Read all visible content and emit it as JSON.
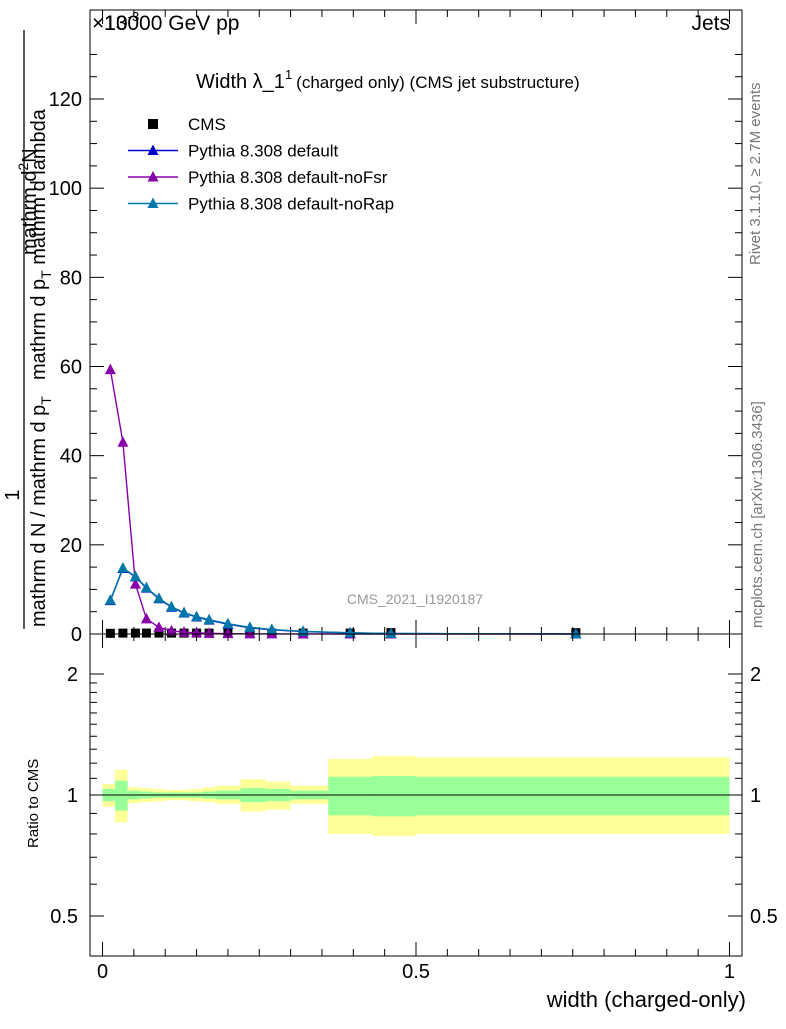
{
  "header": {
    "energy_label": "13000 GeV pp",
    "exponent_label": "×10",
    "exponent_power": "-3",
    "process_label": "Jets"
  },
  "side_labels": {
    "rivet": "Rivet 3.1.10, ≥ 2.7M events",
    "mcplots": "mcplots.cern.ch [arXiv:1306.3436]"
  },
  "chart_data": [
    {
      "type": "line",
      "title_main": "Width λ_1",
      "title_sup": "1",
      "title_rest": "(charged only) (CMS jet substructure)",
      "ylabel_num_a": "1",
      "ylabel_den_a": "mathrm d N / mathrm d p",
      "ylabel_den_a_sub": "T",
      "ylabel_num_b": "mathrm d",
      "ylabel_num_b_sup": "2",
      "ylabel_num_b_end": "N",
      "ylabel_den_b": "mathrm d p",
      "ylabel_den_b_sub": "T",
      "ylabel_den_b_end": " mathrm d lambda",
      "watermark": "CMS_2021_I1920187",
      "xlim": [
        -0.02,
        1.02
      ],
      "ylim": [
        0,
        135
      ],
      "y_ticks": [
        0,
        20,
        40,
        60,
        80,
        100,
        120
      ],
      "legend_position": "top-left",
      "series": [
        {
          "name": "CMS",
          "marker": "square",
          "color": "#000000",
          "x": [
            0.0125,
            0.0325,
            0.0525,
            0.07,
            0.09,
            0.11,
            0.13,
            0.15,
            0.17,
            0.2,
            0.235,
            0.27,
            0.32,
            0.395,
            0.46,
            0.755
          ],
          "y": [
            0.15,
            0.2,
            0.2,
            0.2,
            0.2,
            0.2,
            0.2,
            0.2,
            0.2,
            0.2,
            0.2,
            0.2,
            0.2,
            0.2,
            0.3,
            0.3
          ]
        },
        {
          "name": "Pythia 8.308 default",
          "marker": "triangle",
          "color": "#0000cc",
          "x": [
            0.0125,
            0.0325,
            0.0525,
            0.07,
            0.09,
            0.11,
            0.13,
            0.15,
            0.17,
            0.2,
            0.235,
            0.27,
            0.32,
            0.395,
            0.46,
            0.755
          ],
          "y": [
            7.5,
            14.7,
            12.8,
            10.3,
            7.9,
            6.0,
            4.7,
            3.8,
            3.1,
            2.2,
            1.4,
            0.95,
            0.55,
            0.25,
            0.1,
            0.02
          ]
        },
        {
          "name": "Pythia 8.308 default-noFsr",
          "marker": "triangle",
          "color": "#8800aa",
          "x": [
            0.0125,
            0.0325,
            0.0525,
            0.07,
            0.09,
            0.11,
            0.13,
            0.15,
            0.17,
            0.2,
            0.235,
            0.27,
            0.32,
            0.395,
            0.46,
            0.755
          ],
          "y": [
            59.3,
            43.0,
            11.2,
            3.4,
            1.5,
            0.7,
            0.4,
            0.25,
            0.15,
            0.08,
            0.04,
            0.02,
            0.01,
            0.0,
            0.0,
            0.0
          ]
        },
        {
          "name": "Pythia 8.308 default-noRap",
          "marker": "triangle",
          "color": "#0077aa",
          "x": [
            0.0125,
            0.0325,
            0.0525,
            0.07,
            0.09,
            0.11,
            0.13,
            0.15,
            0.17,
            0.2,
            0.235,
            0.27,
            0.32,
            0.395,
            0.46,
            0.755
          ],
          "y": [
            7.6,
            14.8,
            12.9,
            10.4,
            8.0,
            6.1,
            4.8,
            3.9,
            3.2,
            2.3,
            1.5,
            1.0,
            0.6,
            0.26,
            0.11,
            0.02
          ]
        }
      ]
    },
    {
      "type": "area",
      "ylabel": "Ratio to CMS",
      "xlabel": "width (charged-only)",
      "scale": "log",
      "ylim": [
        0.45,
        2.3
      ],
      "y_ticks": [
        0.5,
        1,
        2
      ],
      "x_ticks": [
        0,
        0.5,
        1
      ],
      "bins": [
        {
          "x0": 0.0,
          "x1": 0.02,
          "inner": [
            0.965,
            1.035
          ],
          "outer": [
            0.935,
            1.065
          ]
        },
        {
          "x0": 0.02,
          "x1": 0.04,
          "inner": [
            0.915,
            1.085
          ],
          "outer": [
            0.855,
            1.155
          ]
        },
        {
          "x0": 0.04,
          "x1": 0.06,
          "inner": [
            0.975,
            1.025
          ],
          "outer": [
            0.955,
            1.045
          ]
        },
        {
          "x0": 0.06,
          "x1": 0.08,
          "inner": [
            0.98,
            1.02
          ],
          "outer": [
            0.96,
            1.04
          ]
        },
        {
          "x0": 0.08,
          "x1": 0.1,
          "inner": [
            0.985,
            1.015
          ],
          "outer": [
            0.965,
            1.035
          ]
        },
        {
          "x0": 0.1,
          "x1": 0.12,
          "inner": [
            0.985,
            1.015
          ],
          "outer": [
            0.97,
            1.03
          ]
        },
        {
          "x0": 0.12,
          "x1": 0.14,
          "inner": [
            0.985,
            1.015
          ],
          "outer": [
            0.97,
            1.03
          ]
        },
        {
          "x0": 0.14,
          "x1": 0.16,
          "inner": [
            0.985,
            1.015
          ],
          "outer": [
            0.965,
            1.035
          ]
        },
        {
          "x0": 0.16,
          "x1": 0.18,
          "inner": [
            0.98,
            1.02
          ],
          "outer": [
            0.96,
            1.045
          ]
        },
        {
          "x0": 0.18,
          "x1": 0.22,
          "inner": [
            0.975,
            1.025
          ],
          "outer": [
            0.95,
            1.055
          ]
        },
        {
          "x0": 0.22,
          "x1": 0.26,
          "inner": [
            0.96,
            1.04
          ],
          "outer": [
            0.91,
            1.095
          ]
        },
        {
          "x0": 0.26,
          "x1": 0.3,
          "inner": [
            0.965,
            1.035
          ],
          "outer": [
            0.92,
            1.08
          ]
        },
        {
          "x0": 0.3,
          "x1": 0.36,
          "inner": [
            0.975,
            1.025
          ],
          "outer": [
            0.95,
            1.055
          ]
        },
        {
          "x0": 0.36,
          "x1": 0.43,
          "inner": [
            0.89,
            1.11
          ],
          "outer": [
            0.8,
            1.23
          ]
        },
        {
          "x0": 0.43,
          "x1": 0.5,
          "inner": [
            0.885,
            1.115
          ],
          "outer": [
            0.79,
            1.25
          ]
        },
        {
          "x0": 0.5,
          "x1": 1.0,
          "inner": [
            0.89,
            1.11
          ],
          "outer": [
            0.8,
            1.24
          ]
        }
      ]
    }
  ]
}
